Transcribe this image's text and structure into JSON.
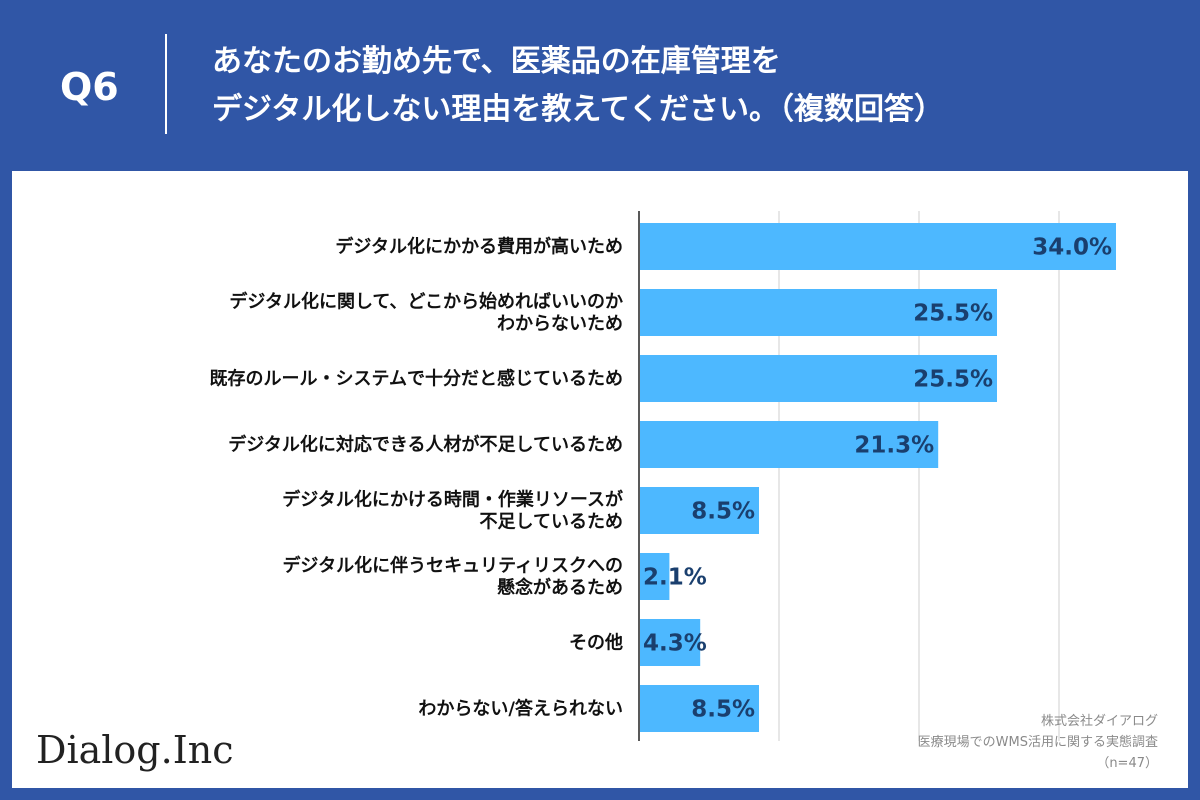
{
  "header": {
    "question_number": "Q6",
    "title_line1": "あなたのお勤め先で、医薬品の在庫管理を",
    "title_line2": "デジタル化しない理由を教えてください。（複数回答）"
  },
  "colors": {
    "background": "#3056a6",
    "bar": "#4db8ff",
    "value_text": "#1a3f6e",
    "grid": "#cfcfcf"
  },
  "chart_data": {
    "type": "bar",
    "orientation": "horizontal",
    "title": "あなたのお勤め先で、医薬品の在庫管理をデジタル化しない理由を教えてください。（複数回答）",
    "categories": [
      [
        "デジタル化にかかる費用が高いため"
      ],
      [
        "デジタル化に関して、どこから始めればいいのか",
        "わからないため"
      ],
      [
        "既存のルール・システムで十分だと感じているため"
      ],
      [
        "デジタル化に対応できる人材が不足しているため"
      ],
      [
        "デジタル化にかける時間・作業リソースが",
        "不足しているため"
      ],
      [
        "デジタル化に伴うセキュリティリスクへの",
        "懸念があるため"
      ],
      [
        "その他"
      ],
      [
        "わからない/答えられない"
      ]
    ],
    "values": [
      34.0,
      25.5,
      25.5,
      21.3,
      8.5,
      2.1,
      4.3,
      8.5
    ],
    "value_labels": [
      "34.0%",
      "25.5%",
      "25.5%",
      "21.3%",
      "8.5%",
      "2.1%",
      "4.3%",
      "8.5%"
    ],
    "xlim": [
      0,
      40
    ],
    "grid_step": 10,
    "grid": true,
    "unit": "%"
  },
  "footer": {
    "logo": "Dialog.Inc",
    "company": "株式会社ダイアログ",
    "survey": "医療現場でのWMS活用に関する実態調査",
    "sample": "（n=47）"
  }
}
